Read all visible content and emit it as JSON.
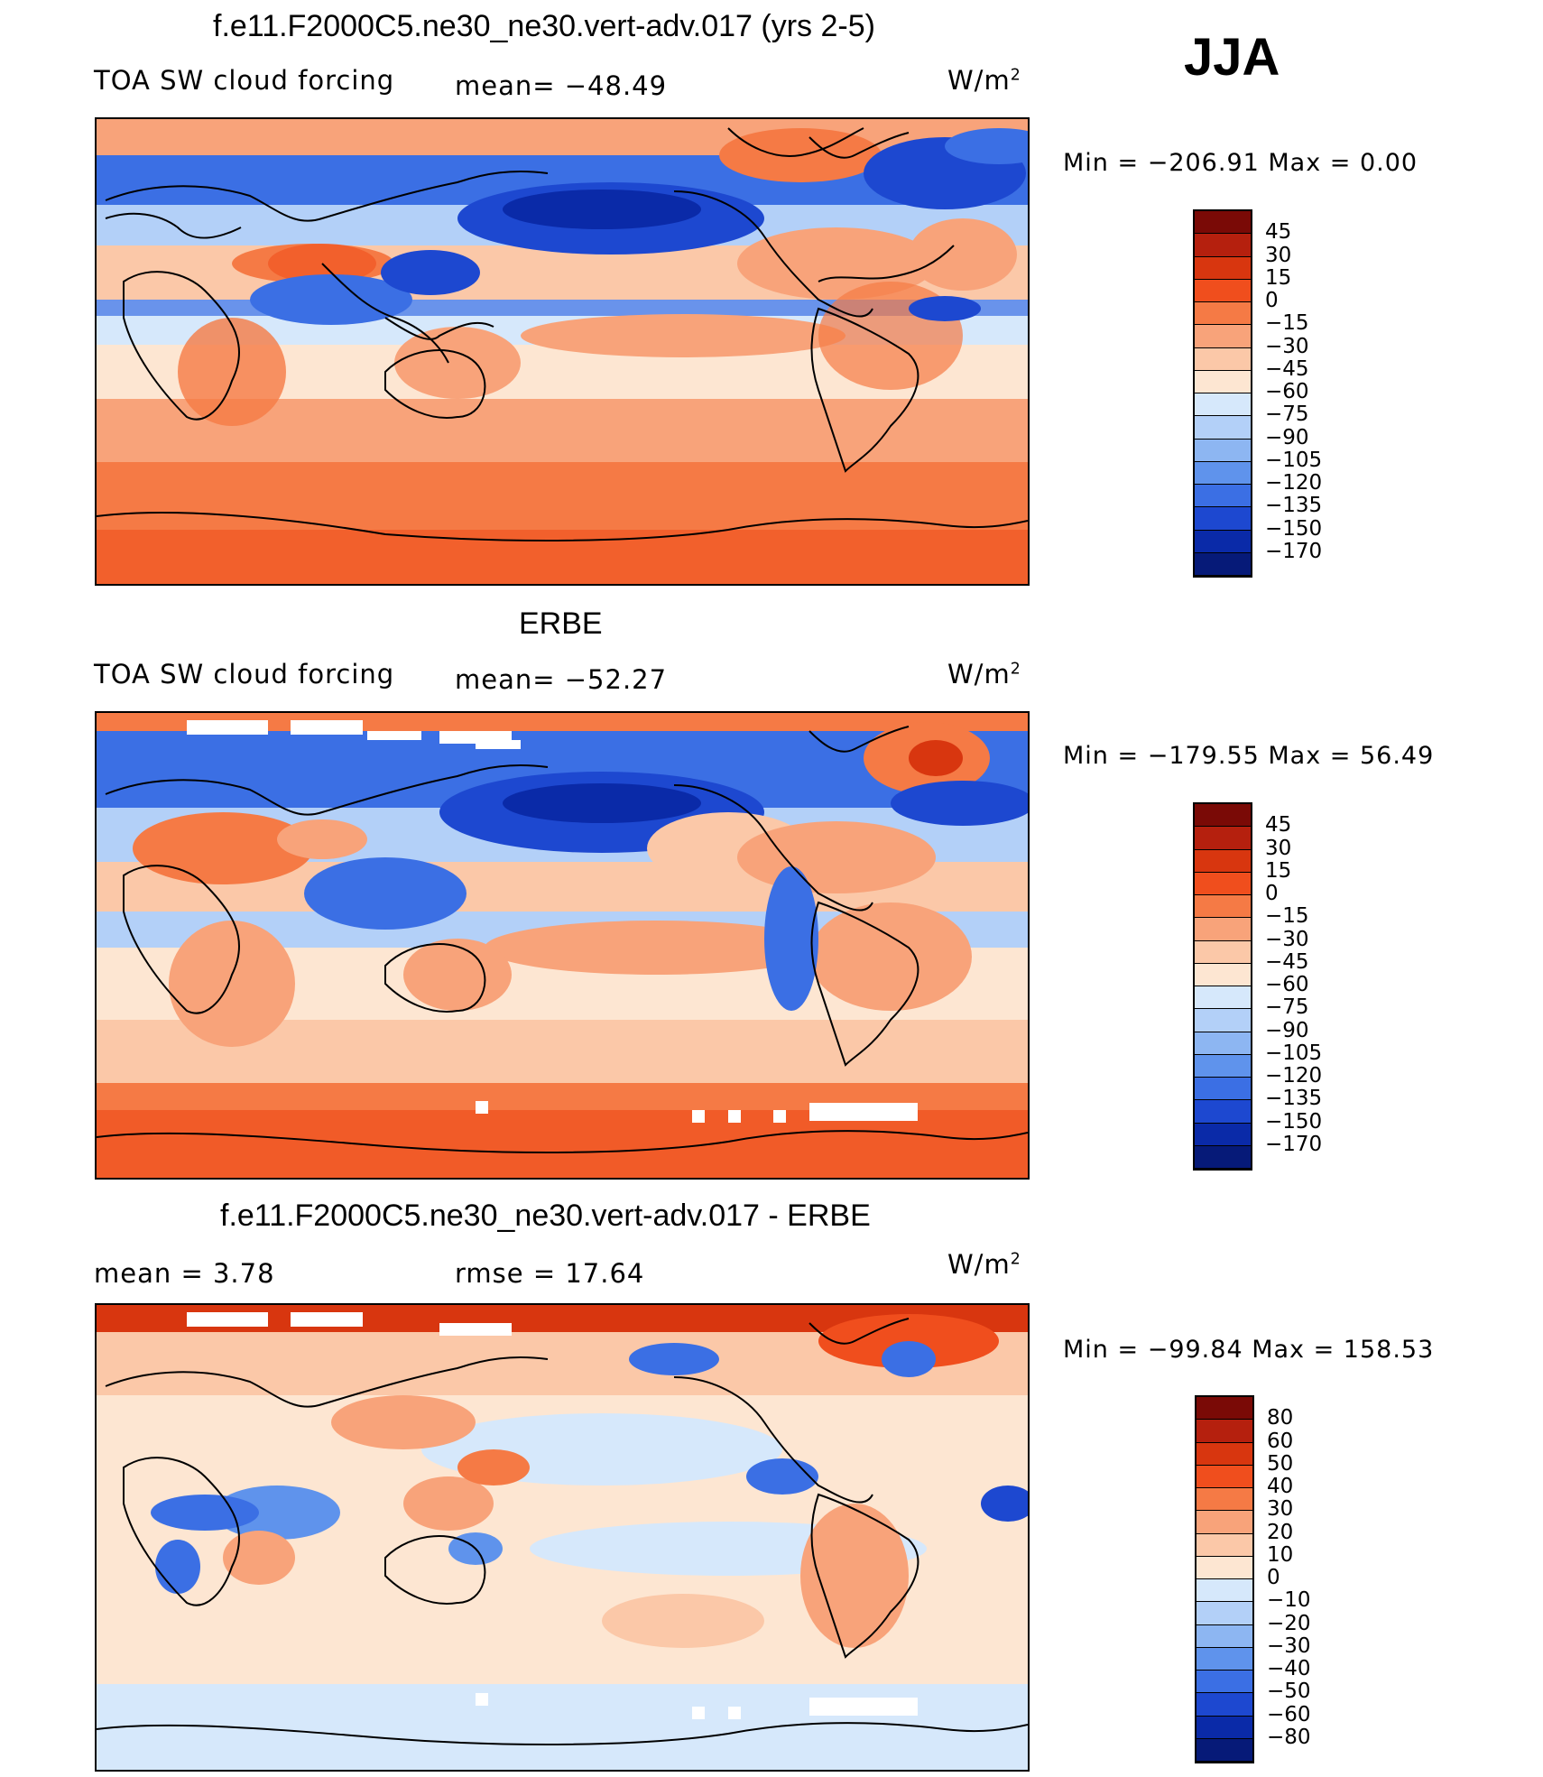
{
  "season": "JJA",
  "panels": [
    {
      "title": "f.e11.F2000C5.ne30_ne30.vert-adv.017 (yrs 2-5)",
      "left_label": "TOA SW cloud forcing",
      "center_label": "mean= −48.49",
      "units_base": "W/m",
      "units_exp": "2",
      "minmax": "Min = −206.91 Max = 0.00",
      "colorbar_labels": [
        "45",
        "30",
        "15",
        "0",
        "−15",
        "−30",
        "−45",
        "−60",
        "−75",
        "−90",
        "−105",
        "−120",
        "−135",
        "−150",
        "−170"
      ]
    },
    {
      "title": "ERBE",
      "left_label": "TOA SW cloud forcing",
      "center_label": "mean= −52.27",
      "units_base": "W/m",
      "units_exp": "2",
      "minmax": "Min = −179.55 Max = 56.49",
      "colorbar_labels": [
        "45",
        "30",
        "15",
        "0",
        "−15",
        "−30",
        "−45",
        "−60",
        "−75",
        "−90",
        "−105",
        "−120",
        "−135",
        "−150",
        "−170"
      ]
    },
    {
      "title": "f.e11.F2000C5.ne30_ne30.vert-adv.017 - ERBE",
      "left_label": "mean = 3.78",
      "center_label": "rmse = 17.64",
      "units_base": "W/m",
      "units_exp": "2",
      "minmax": "Min = −99.84 Max = 158.53",
      "colorbar_labels": [
        "80",
        "60",
        "50",
        "40",
        "30",
        "20",
        "10",
        "0",
        "−10",
        "−20",
        "−30",
        "−40",
        "−50",
        "−60",
        "−80"
      ]
    }
  ],
  "colorbar_colors": [
    "#7a0a06",
    "#b5200e",
    "#d8360f",
    "#f04e1d",
    "#f57a45",
    "#f8a37a",
    "#fbc8a8",
    "#fde6d2",
    "#d6e8fb",
    "#b3d0f8",
    "#8db6f2",
    "#5f93ec",
    "#3b6fe4",
    "#1d48d0",
    "#0a2aa8",
    "#061a78"
  ]
}
